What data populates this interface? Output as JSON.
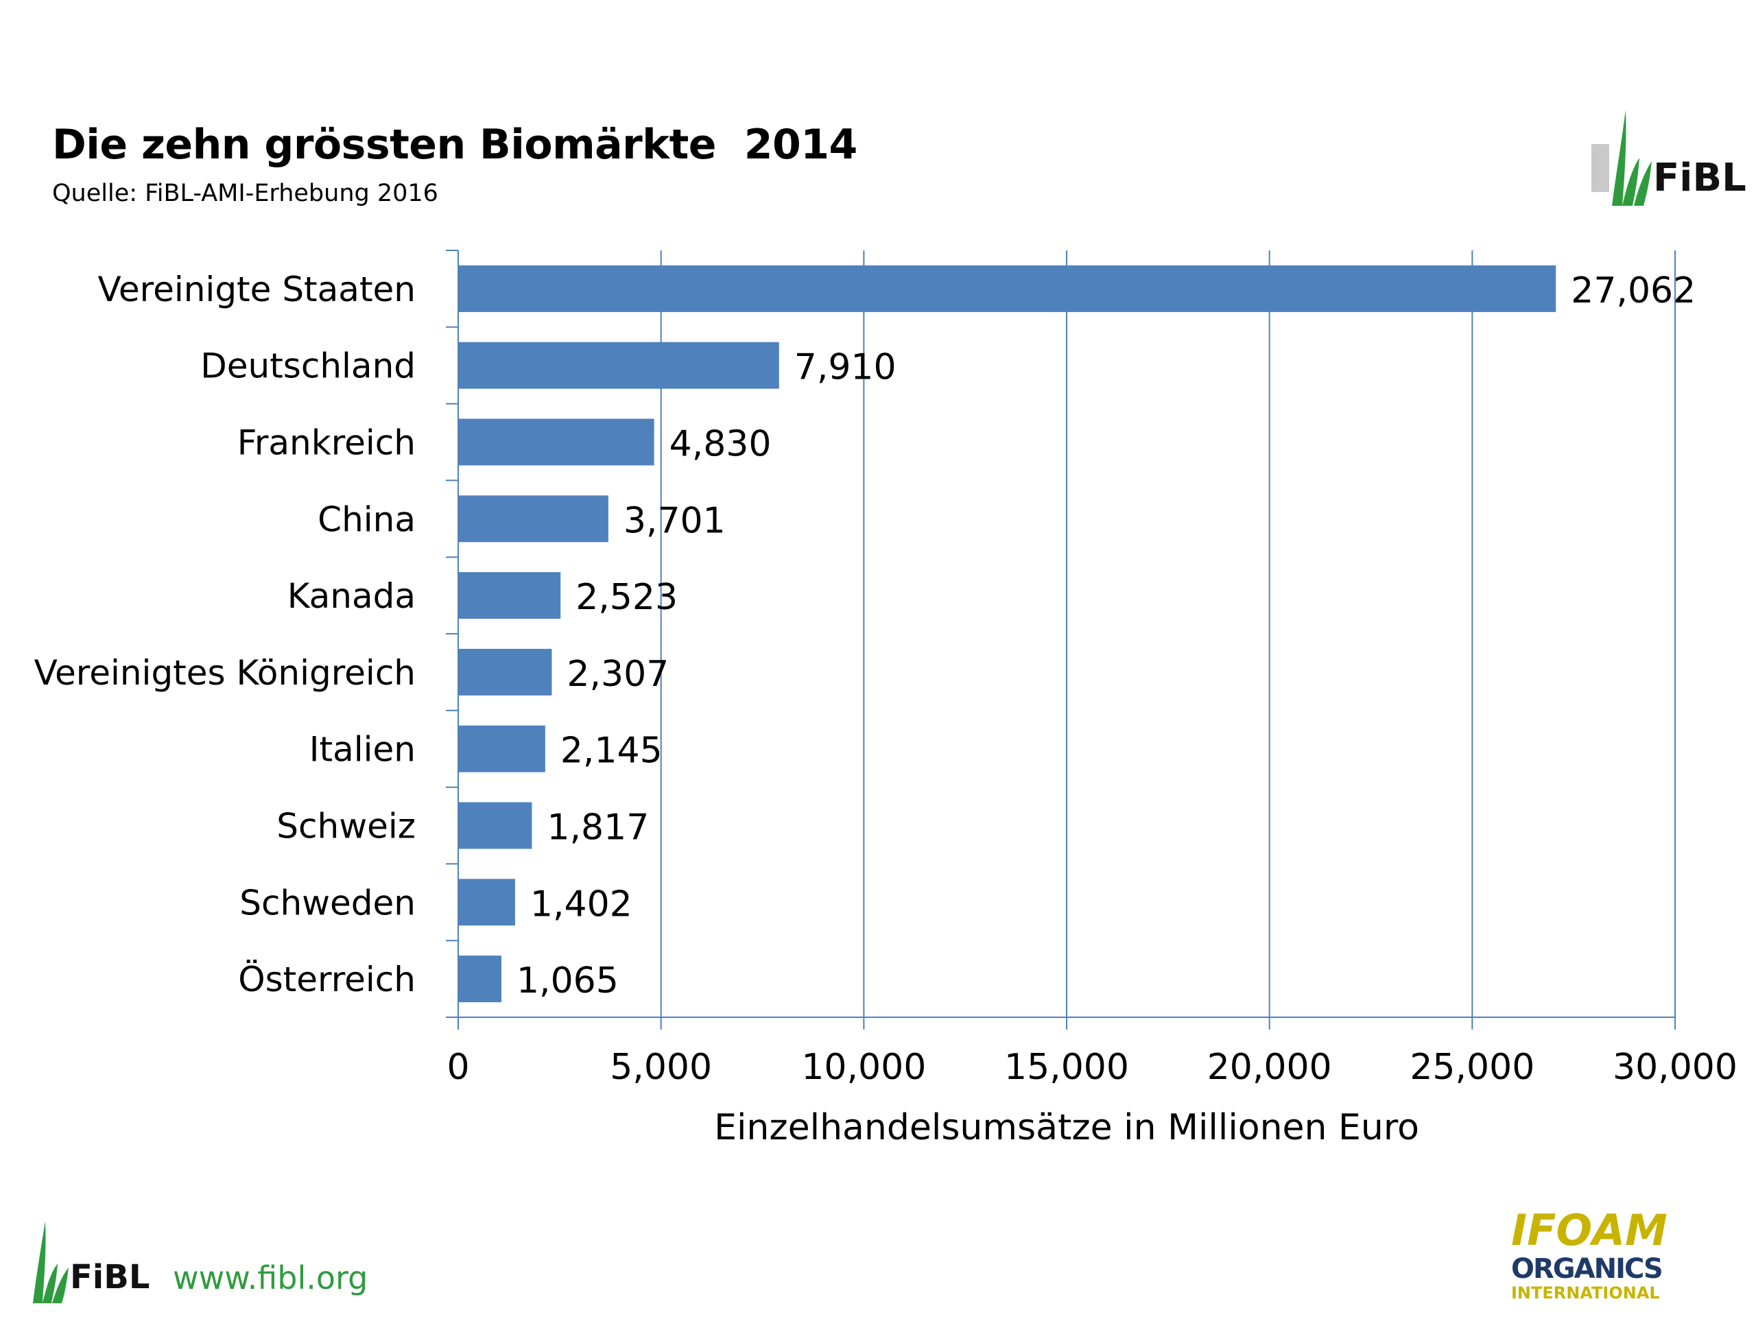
{
  "header": {
    "title": "Die zehn grössten Biomärkte  2014",
    "subtitle": "Quelle: FiBL-AMI-Erhebung 2016"
  },
  "branding": {
    "fibl_logo_text": "FiBL",
    "website": "www.fibl.org",
    "ifoam_logo_text": [
      "IFOAM",
      "ORGANICS",
      "INTERNATIONAL"
    ]
  },
  "colors": {
    "bar": "#4f81bd",
    "grid": "#4f81bd",
    "fibl_green": "#2e9c3e",
    "ifoam_yellow": "#c8b400",
    "ifoam_navy": "#1f3a68"
  },
  "chart_data": {
    "type": "bar",
    "orientation": "horizontal",
    "categories": [
      "Vereinigte Staaten",
      "Deutschland",
      "Frankreich",
      "China",
      "Kanada",
      "Vereinigtes Königreich",
      "Italien",
      "Schweiz",
      "Schweden",
      "Österreich"
    ],
    "values": [
      27062,
      7910,
      4830,
      3701,
      2523,
      2307,
      2145,
      1817,
      1402,
      1065
    ],
    "data_labels": [
      "27,062",
      "7,910",
      "4,830",
      "3,701",
      "2,523",
      "2,307",
      "2,145",
      "1,817",
      "1,402",
      "1,065"
    ],
    "xticks": [
      "0",
      "5,000",
      "10,000",
      "15,000",
      "20,000",
      "25,000",
      "30,000"
    ],
    "xlim": [
      0,
      30000
    ],
    "xlabel": "Einzelhandelsumsätze in Millionen Euro",
    "ylabel": "",
    "grid": "vertical",
    "legend": "none"
  }
}
